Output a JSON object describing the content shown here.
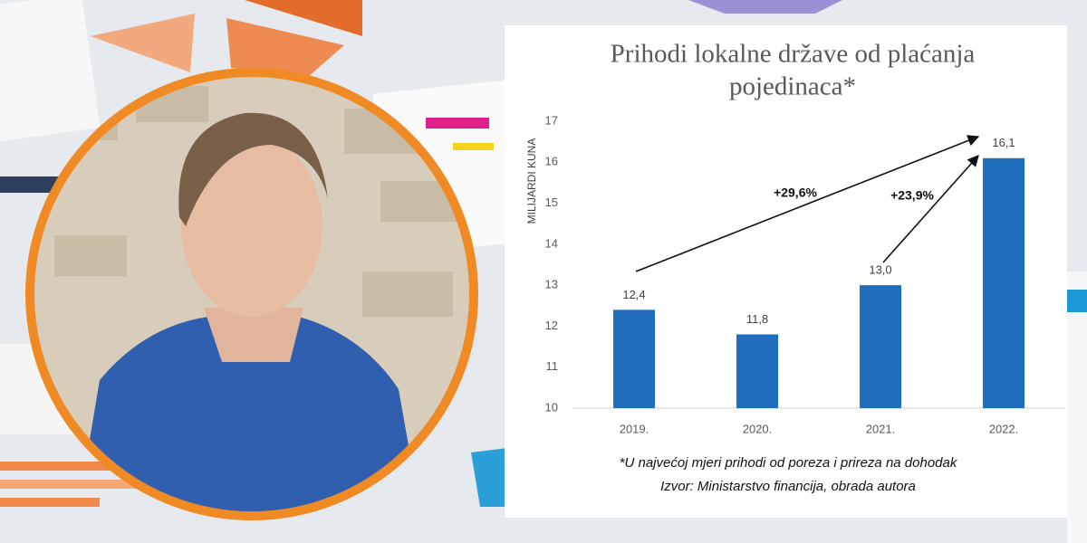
{
  "chart_data": {
    "type": "bar",
    "title": [
      "Prihodi lokalne države od plaćanja",
      "pojedinaca*"
    ],
    "y_label": "MILIJARDI KUNA",
    "categories": [
      "2019.",
      "2020.",
      "2021.",
      "2022."
    ],
    "values": [
      12.4,
      11.8,
      13.0,
      16.1
    ],
    "value_labels": [
      "12,4",
      "11,8",
      "13,0",
      "16,1"
    ],
    "color": "#1f6dbb",
    "ylim": [
      10,
      17
    ],
    "yticks": [
      10,
      11,
      12,
      13,
      14,
      15,
      16,
      17
    ],
    "annotations": [
      "+29,6%",
      "+23,9%"
    ],
    "footnotes": [
      "*U najvećoj mjeri prihodi od poreza i prireza na dohodak",
      "Izvor: Ministarstvo financija, obrada autora"
    ]
  }
}
